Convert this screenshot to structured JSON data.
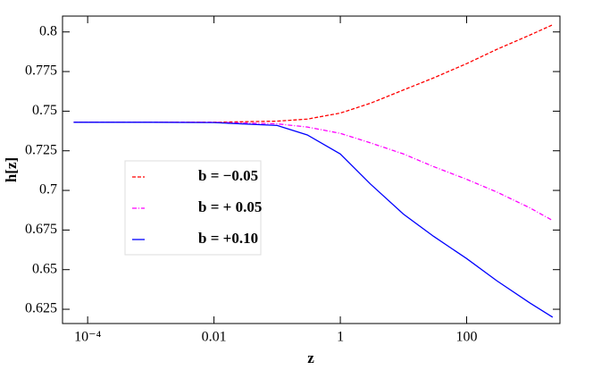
{
  "chart_data": {
    "type": "line",
    "x_label": "z",
    "y_label": "h[z]",
    "log_x": true,
    "xlim": [
      4e-05,
      3000
    ],
    "ylim": [
      0.616,
      0.81
    ],
    "xticks": [
      {
        "value": 0.0001,
        "label": "10⁻⁴"
      },
      0.01,
      1,
      100
    ],
    "yticks": [
      0.625,
      0.65,
      0.675,
      0.7,
      0.725,
      0.75,
      0.775,
      0.8
    ],
    "x": [
      6e-05,
      0.001,
      0.01,
      0.1,
      0.3,
      1,
      3,
      10,
      30,
      100,
      300,
      1000,
      2300
    ],
    "series": [
      {
        "name": "b = −0.05",
        "color": "#ff0000",
        "dash": "4,2",
        "values": [
          0.743,
          0.743,
          0.743,
          0.7437,
          0.745,
          0.7488,
          0.755,
          0.7634,
          0.771,
          0.78,
          0.789,
          0.798,
          0.8045
        ]
      },
      {
        "name": "b = + 0.05",
        "color": "#ff00ff",
        "dash": "5,2,1,2",
        "values": [
          0.743,
          0.743,
          0.743,
          0.742,
          0.74,
          0.736,
          0.73,
          0.723,
          0.715,
          0.707,
          0.699,
          0.689,
          0.681
        ]
      },
      {
        "name": "b = +0.10",
        "color": "#0000ff",
        "dash": "",
        "values": [
          0.743,
          0.743,
          0.7428,
          0.741,
          0.735,
          0.723,
          0.704,
          0.685,
          0.671,
          0.657,
          0.643,
          0.629,
          0.62
        ]
      }
    ],
    "legend": "lower-left"
  }
}
